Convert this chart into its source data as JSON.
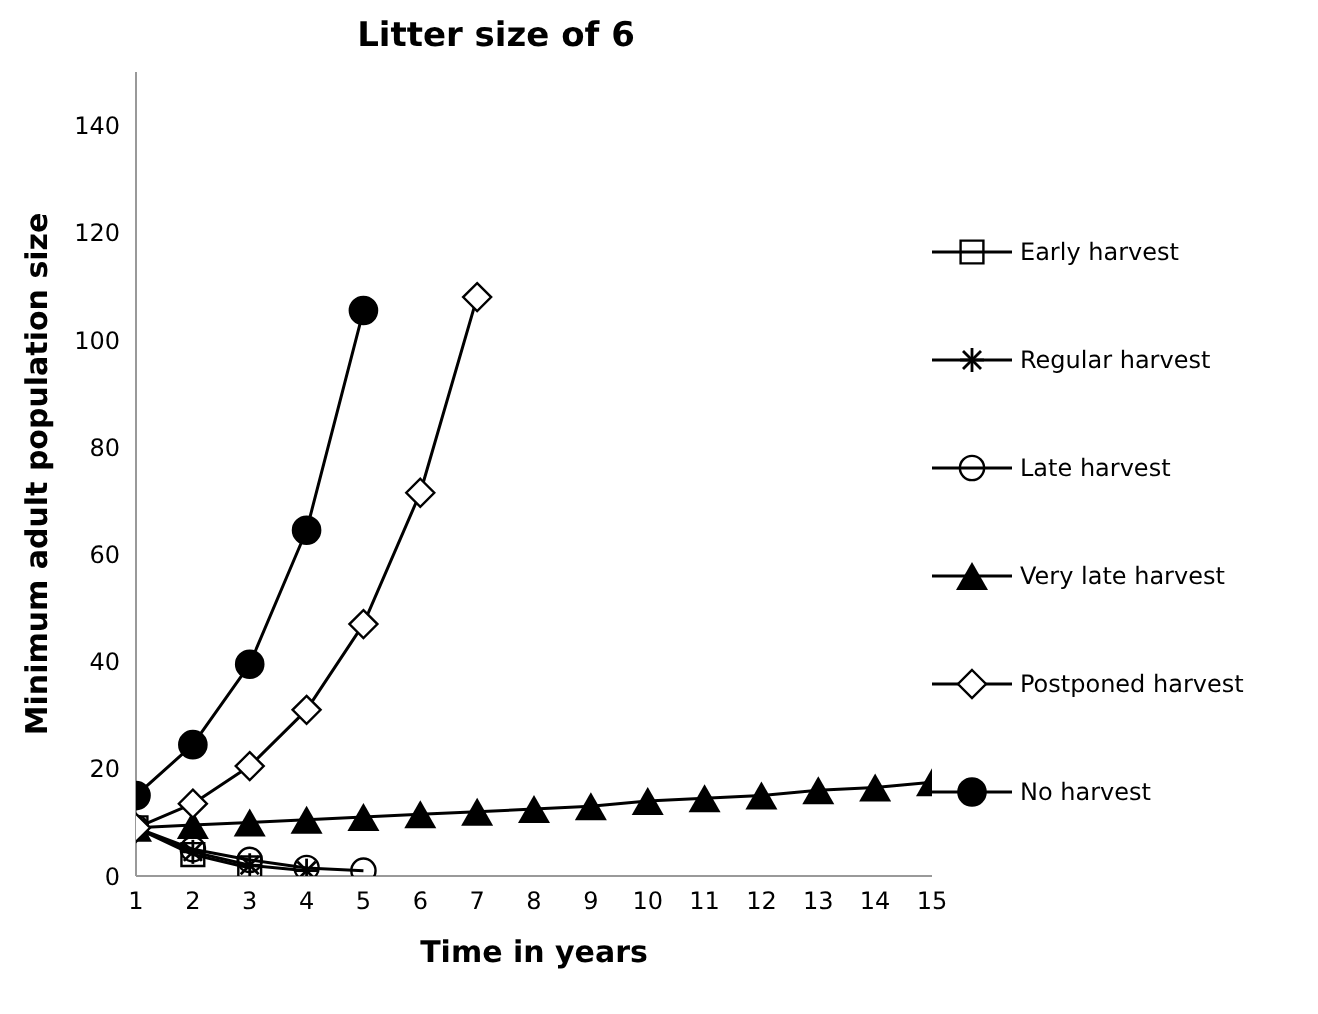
{
  "chart_data": {
    "type": "line",
    "title": "Litter size of 6",
    "xlabel": "Time in years",
    "ylabel": "Minimum adult population size",
    "x": [
      1,
      2,
      3,
      4,
      5,
      6,
      7,
      8,
      9,
      10,
      11,
      12,
      13,
      14,
      15
    ],
    "xlim": [
      1,
      15
    ],
    "xticks": [
      1,
      2,
      3,
      4,
      5,
      6,
      7,
      8,
      9,
      10,
      11,
      12,
      13,
      14,
      15
    ],
    "ylim": [
      0,
      150
    ],
    "yticks": [
      0,
      20,
      40,
      60,
      80,
      100,
      120,
      140
    ],
    "grid": false,
    "legend": "right",
    "series": [
      {
        "name": "Early harvest",
        "color": "#000000",
        "marker": "square",
        "values": [
          9,
          4,
          1.5,
          null,
          null,
          null,
          null,
          null,
          null,
          null,
          null,
          null,
          null,
          null,
          null
        ]
      },
      {
        "name": "Regular harvest",
        "color": "#000000",
        "marker": "cross",
        "values": [
          9,
          4.5,
          2,
          1,
          null,
          null,
          null,
          null,
          null,
          null,
          null,
          null,
          null,
          null,
          null
        ]
      },
      {
        "name": "Late harvest",
        "color": "#000000",
        "marker": "circle",
        "values": [
          9,
          5,
          3,
          1.5,
          1,
          null,
          null,
          null,
          null,
          null,
          null,
          null,
          null,
          null,
          null
        ]
      },
      {
        "name": "Very late harvest",
        "color": "#000000",
        "marker": "triangle",
        "values": [
          9,
          9.5,
          10,
          10.5,
          11,
          11.5,
          12,
          12.5,
          13,
          14,
          14.5,
          15,
          16,
          16.5,
          17.5
        ]
      },
      {
        "name": "Postponed harvest",
        "color": "#000000",
        "marker": "diamond",
        "values": [
          9,
          13.5,
          20.5,
          31,
          47,
          71.5,
          108,
          null,
          null,
          null,
          null,
          null,
          null,
          null,
          null
        ]
      },
      {
        "name": "No harvest",
        "color": "#000000",
        "marker": "filled-circle",
        "values": [
          15,
          24.5,
          39.5,
          64.5,
          105.5,
          null,
          null,
          null,
          null,
          null,
          null,
          null,
          null,
          null,
          null
        ]
      }
    ]
  }
}
